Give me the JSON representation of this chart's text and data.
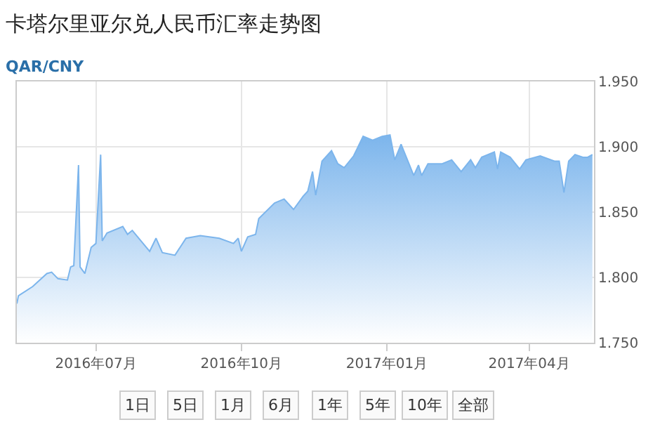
{
  "chart_data": {
    "type": "area",
    "title": "卡塔尔里亚尔兑人民币汇率走势图",
    "subtitle": "QAR/CNY",
    "x": [
      "2016-05-12",
      "2016-05-13",
      "2016-05-22",
      "2016-05-31",
      "2016-06-03",
      "2016-06-07",
      "2016-06-13",
      "2016-06-15",
      "2016-06-17",
      "2016-06-20",
      "2016-06-21",
      "2016-06-24",
      "2016-06-28",
      "2016-07-01",
      "2016-07-04",
      "2016-07-05",
      "2016-07-08",
      "2016-07-18",
      "2016-07-21",
      "2016-07-24",
      "2016-08-04",
      "2016-08-08",
      "2016-08-12",
      "2016-08-20",
      "2016-08-27",
      "2016-09-05",
      "2016-09-17",
      "2016-09-26",
      "2016-09-29",
      "2016-10-01",
      "2016-10-05",
      "2016-10-10",
      "2016-10-12",
      "2016-10-22",
      "2016-10-28",
      "2016-11-03",
      "2016-11-09",
      "2016-11-12",
      "2016-11-15",
      "2016-11-17",
      "2016-11-21",
      "2016-11-27",
      "2016-12-01",
      "2016-12-05",
      "2016-12-11",
      "2016-12-17",
      "2016-12-23",
      "2016-12-29",
      "2017-01-03",
      "2017-01-06",
      "2017-01-10",
      "2017-01-14",
      "2017-01-18",
      "2017-01-21",
      "2017-01-23",
      "2017-01-27",
      "2017-02-05",
      "2017-02-11",
      "2017-02-17",
      "2017-02-23",
      "2017-02-26",
      "2017-03-02",
      "2017-03-10",
      "2017-03-12",
      "2017-03-14",
      "2017-03-20",
      "2017-03-26",
      "2017-03-30",
      "2017-04-08",
      "2017-04-17",
      "2017-04-20",
      "2017-04-23",
      "2017-04-26",
      "2017-04-30",
      "2017-05-05",
      "2017-05-08",
      "2017-05-11"
    ],
    "series": [
      {
        "color": "#7cb5ec",
        "values": [
          1.78,
          1.786,
          1.793,
          1.803,
          1.804,
          1.799,
          1.798,
          1.808,
          1.809,
          1.886,
          1.808,
          1.803,
          1.823,
          1.826,
          1.894,
          1.828,
          1.834,
          1.839,
          1.833,
          1.836,
          1.82,
          1.83,
          1.819,
          1.817,
          1.83,
          1.832,
          1.83,
          1.826,
          1.83,
          1.82,
          1.831,
          1.833,
          1.845,
          1.857,
          1.86,
          1.852,
          1.862,
          1.866,
          1.881,
          1.863,
          1.889,
          1.897,
          1.887,
          1.884,
          1.893,
          1.908,
          1.905,
          1.908,
          1.909,
          1.89,
          1.902,
          1.89,
          1.878,
          1.886,
          1.878,
          1.887,
          1.887,
          1.89,
          1.881,
          1.89,
          1.884,
          1.892,
          1.896,
          1.883,
          1.896,
          1.892,
          1.883,
          1.89,
          1.893,
          1.889,
          1.889,
          1.865,
          1.889,
          1.894,
          1.892,
          1.892,
          1.894
        ]
      }
    ],
    "xlim": [
      "2016-05-12",
      "2017-05-12"
    ],
    "xticks": [
      {
        "value": "2016-07-01",
        "label": "2016年07月"
      },
      {
        "value": "2016-10-01",
        "label": "2016年10月"
      },
      {
        "value": "2017-01-01",
        "label": "2017年01月"
      },
      {
        "value": "2017-04-01",
        "label": "2017年04月"
      }
    ],
    "ylim": [
      1.75,
      1.95
    ],
    "yticks": [
      {
        "value": 1.75,
        "label": "1.750"
      },
      {
        "value": 1.8,
        "label": "1.800"
      },
      {
        "value": 1.85,
        "label": "1.850"
      },
      {
        "value": 1.9,
        "label": "1.900"
      },
      {
        "value": 1.95,
        "label": "1.950"
      }
    ],
    "grid": true,
    "legend": false,
    "marker": "none",
    "line_style": "solid",
    "annotations": [
      "1日",
      "5日",
      "1月",
      "6月",
      "1年",
      "5年",
      "10年",
      "全部"
    ]
  }
}
